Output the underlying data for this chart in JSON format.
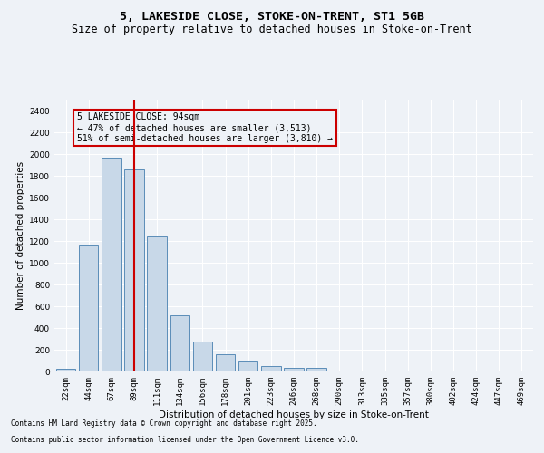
{
  "title_line1": "5, LAKESIDE CLOSE, STOKE-ON-TRENT, ST1 5GB",
  "title_line2": "Size of property relative to detached houses in Stoke-on-Trent",
  "xlabel": "Distribution of detached houses by size in Stoke-on-Trent",
  "ylabel": "Number of detached properties",
  "categories": [
    "22sqm",
    "44sqm",
    "67sqm",
    "89sqm",
    "111sqm",
    "134sqm",
    "156sqm",
    "178sqm",
    "201sqm",
    "223sqm",
    "246sqm",
    "268sqm",
    "290sqm",
    "313sqm",
    "335sqm",
    "357sqm",
    "380sqm",
    "402sqm",
    "424sqm",
    "447sqm",
    "469sqm"
  ],
  "values": [
    25,
    1170,
    1970,
    1855,
    1245,
    515,
    275,
    155,
    90,
    50,
    35,
    30,
    10,
    8,
    5,
    3,
    2,
    2,
    2,
    1,
    1
  ],
  "bar_color": "#c8d8e8",
  "bar_edge_color": "#5b8db8",
  "vline_x_index": 3,
  "vline_color": "#cc0000",
  "annotation_title": "5 LAKESIDE CLOSE: 94sqm",
  "annotation_line2": "← 47% of detached houses are smaller (3,513)",
  "annotation_line3": "51% of semi-detached houses are larger (3,810) →",
  "annotation_box_color": "#cc0000",
  "ylim": [
    0,
    2500
  ],
  "yticks": [
    0,
    200,
    400,
    600,
    800,
    1000,
    1200,
    1400,
    1600,
    1800,
    2000,
    2200,
    2400
  ],
  "footnote1": "Contains HM Land Registry data © Crown copyright and database right 2025.",
  "footnote2": "Contains public sector information licensed under the Open Government Licence v3.0.",
  "bg_color": "#eef2f7",
  "grid_color": "#ffffff",
  "title_fontsize": 9.5,
  "subtitle_fontsize": 8.5,
  "axis_label_fontsize": 7.5,
  "tick_fontsize": 6.5,
  "annotation_fontsize": 7,
  "footnote_fontsize": 5.5
}
